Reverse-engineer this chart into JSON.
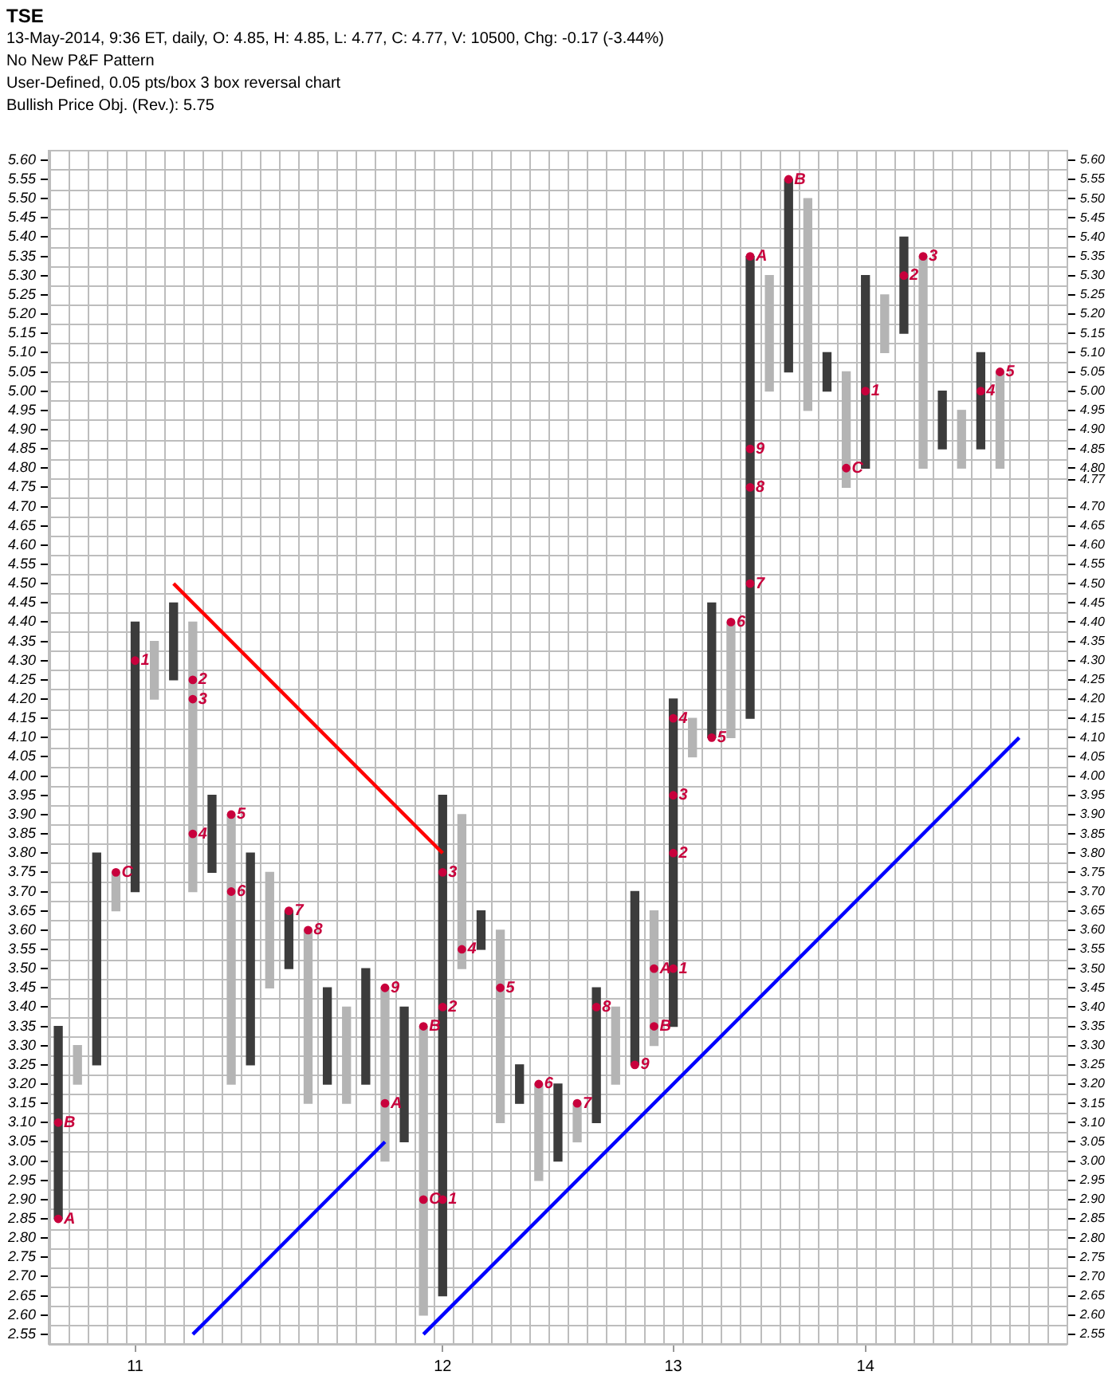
{
  "chart_data": {
    "type": "bar",
    "title": "TSE",
    "annotations": [
      "13-May-2014, 9:36 ET, daily, O: 4.85, H: 4.85, L: 4.77, C: 4.77, V: 10500, Chg: -0.17 (-3.44%)",
      "No New P&F Pattern",
      "User-Defined, 0.05 pts/box 3 box reversal chart",
      "Bullish Price Obj. (Rev.): 5.75"
    ],
    "categories": [
      null,
      null,
      null,
      null,
      "11",
      null,
      null,
      null,
      null,
      null,
      null,
      null,
      null,
      null,
      null,
      null,
      null,
      null,
      null,
      null,
      "12",
      null,
      null,
      null,
      null,
      null,
      null,
      null,
      null,
      null,
      null,
      null,
      "13",
      null,
      null,
      null,
      null,
      null,
      null,
      null,
      null,
      null,
      "14",
      null,
      null,
      null,
      null,
      null,
      null,
      null,
      null,
      null,
      null
    ],
    "series": [
      {
        "color": "#3c3c3c",
        "base": [
          2.85,
          null,
          3.25,
          null,
          3.7,
          null,
          4.25,
          null,
          3.75,
          null,
          3.25,
          null,
          3.5,
          null,
          3.2,
          null,
          3.2,
          null,
          3.05,
          null,
          2.65,
          null,
          3.55,
          null,
          3.15,
          null,
          3.0,
          null,
          3.1,
          null,
          3.25,
          null,
          3.35,
          null,
          4.1,
          null,
          4.15,
          null,
          5.05,
          null,
          5.0,
          null,
          4.8,
          null,
          5.15,
          null,
          4.85,
          null,
          4.85,
          null,
          null,
          null,
          null
        ],
        "values": [
          0.5,
          null,
          0.55,
          null,
          0.7,
          null,
          0.2,
          null,
          0.2,
          null,
          0.55,
          null,
          0.15,
          null,
          0.25,
          null,
          0.3,
          null,
          0.35,
          null,
          1.3,
          null,
          0.1,
          null,
          0.1,
          null,
          0.2,
          null,
          0.35,
          null,
          0.45,
          null,
          0.85,
          null,
          0.35,
          null,
          1.2,
          null,
          0.5,
          null,
          0.1,
          null,
          0.5,
          null,
          0.25,
          null,
          0.15,
          null,
          0.25,
          null,
          null,
          null,
          null
        ]
      },
      {
        "color": "#b4b4b4",
        "base": [
          null,
          3.2,
          null,
          3.65,
          null,
          4.2,
          null,
          3.7,
          null,
          3.2,
          null,
          3.45,
          null,
          3.15,
          null,
          3.15,
          null,
          3.0,
          null,
          2.6,
          null,
          3.5,
          null,
          3.1,
          null,
          2.95,
          null,
          3.05,
          null,
          3.2,
          null,
          3.3,
          null,
          4.05,
          null,
          4.1,
          null,
          5.0,
          null,
          4.95,
          null,
          4.75,
          null,
          5.1,
          null,
          4.8,
          null,
          4.8,
          null,
          4.8,
          null,
          null,
          null
        ],
        "values": [
          null,
          0.1,
          null,
          0.1,
          null,
          0.15,
          null,
          0.7,
          null,
          0.7,
          null,
          0.3,
          null,
          0.45,
          null,
          0.25,
          null,
          0.45,
          null,
          0.75,
          null,
          0.4,
          null,
          0.5,
          null,
          0.25,
          null,
          0.1,
          null,
          0.2,
          null,
          0.35,
          null,
          0.1,
          null,
          0.3,
          null,
          0.3,
          null,
          0.55,
          null,
          0.3,
          null,
          0.15,
          null,
          0.55,
          null,
          0.15,
          null,
          0.25,
          null,
          null,
          null
        ]
      },
      {
        "type": "scatter",
        "name": "1",
        "marker": "circle",
        "color": "#c8003c",
        "values": [
          null,
          null,
          null,
          null,
          4.3,
          null,
          null,
          null,
          null,
          null,
          null,
          null,
          null,
          null,
          null,
          null,
          null,
          null,
          null,
          null,
          2.9,
          null,
          null,
          null,
          null,
          null,
          null,
          null,
          null,
          null,
          null,
          null,
          3.5,
          null,
          null,
          null,
          null,
          null,
          null,
          null,
          null,
          null,
          5.0,
          null,
          null,
          null,
          null,
          null,
          null,
          null,
          null,
          null,
          null
        ]
      },
      {
        "type": "scatter",
        "name": "2",
        "marker": "circle",
        "color": "#c8003c",
        "values": [
          null,
          null,
          null,
          null,
          null,
          null,
          null,
          4.25,
          null,
          null,
          null,
          null,
          null,
          null,
          null,
          null,
          null,
          null,
          null,
          null,
          3.4,
          null,
          null,
          null,
          null,
          null,
          null,
          null,
          null,
          null,
          null,
          null,
          3.8,
          null,
          null,
          null,
          null,
          null,
          null,
          null,
          null,
          null,
          null,
          null,
          5.3,
          null,
          null,
          null,
          null,
          null,
          null,
          null,
          null
        ]
      },
      {
        "type": "scatter",
        "name": "3",
        "marker": "circle",
        "color": "#c8003c",
        "values": [
          null,
          null,
          null,
          null,
          null,
          null,
          null,
          4.2,
          null,
          null,
          null,
          null,
          null,
          null,
          null,
          null,
          null,
          null,
          null,
          null,
          3.75,
          null,
          null,
          null,
          null,
          null,
          null,
          null,
          null,
          null,
          null,
          null,
          3.95,
          null,
          null,
          null,
          null,
          null,
          null,
          null,
          null,
          null,
          null,
          null,
          null,
          5.35,
          null,
          null,
          null,
          null,
          null,
          null,
          null
        ]
      },
      {
        "type": "scatter",
        "name": "4",
        "marker": "circle",
        "color": "#c8003c",
        "values": [
          null,
          null,
          null,
          null,
          null,
          null,
          null,
          3.85,
          null,
          null,
          null,
          null,
          null,
          null,
          null,
          null,
          null,
          null,
          null,
          null,
          null,
          3.55,
          null,
          null,
          null,
          null,
          null,
          null,
          null,
          null,
          null,
          null,
          4.15,
          null,
          null,
          null,
          null,
          null,
          null,
          null,
          null,
          null,
          null,
          null,
          null,
          null,
          null,
          null,
          5.0,
          null,
          null,
          null,
          null
        ]
      },
      {
        "type": "scatter",
        "name": "5",
        "marker": "circle",
        "color": "#c8003c",
        "values": [
          null,
          null,
          null,
          null,
          null,
          null,
          null,
          null,
          null,
          3.9,
          null,
          null,
          null,
          null,
          null,
          null,
          null,
          null,
          null,
          null,
          null,
          null,
          null,
          3.45,
          null,
          null,
          null,
          null,
          null,
          null,
          null,
          null,
          null,
          null,
          4.1,
          null,
          null,
          null,
          null,
          null,
          null,
          null,
          null,
          null,
          null,
          null,
          null,
          null,
          null,
          5.05,
          null,
          null,
          null
        ]
      },
      {
        "type": "scatter",
        "name": "6",
        "marker": "circle",
        "color": "#c8003c",
        "values": [
          null,
          null,
          null,
          null,
          null,
          null,
          null,
          null,
          null,
          3.7,
          null,
          null,
          null,
          null,
          null,
          null,
          null,
          null,
          null,
          null,
          null,
          null,
          null,
          null,
          null,
          3.2,
          null,
          null,
          null,
          null,
          null,
          null,
          null,
          null,
          null,
          4.4,
          null,
          null,
          null,
          null,
          null,
          null,
          null,
          null,
          null,
          null,
          null,
          null,
          null,
          null,
          null,
          null,
          null
        ]
      },
      {
        "type": "scatter",
        "name": "7",
        "marker": "circle",
        "color": "#c8003c",
        "values": [
          null,
          null,
          null,
          null,
          null,
          null,
          null,
          null,
          null,
          null,
          null,
          null,
          3.65,
          null,
          null,
          null,
          null,
          null,
          null,
          null,
          null,
          null,
          null,
          null,
          null,
          null,
          null,
          3.15,
          null,
          null,
          null,
          null,
          null,
          null,
          null,
          null,
          4.5,
          null,
          null,
          null,
          null,
          null,
          null,
          null,
          null,
          null,
          null,
          null,
          null,
          null,
          null,
          null,
          null
        ]
      },
      {
        "type": "scatter",
        "name": "8",
        "marker": "circle",
        "color": "#c8003c",
        "values": [
          null,
          null,
          null,
          null,
          null,
          null,
          null,
          null,
          null,
          null,
          null,
          null,
          null,
          3.6,
          null,
          null,
          null,
          null,
          null,
          null,
          null,
          null,
          null,
          null,
          null,
          null,
          null,
          null,
          3.4,
          null,
          null,
          null,
          null,
          null,
          null,
          null,
          4.75,
          null,
          null,
          null,
          null,
          null,
          null,
          null,
          null,
          null,
          null,
          null,
          null,
          null,
          null,
          null,
          null
        ]
      },
      {
        "type": "scatter",
        "name": "9",
        "marker": "circle",
        "color": "#c8003c",
        "values": [
          null,
          null,
          null,
          null,
          null,
          null,
          null,
          null,
          null,
          null,
          null,
          null,
          null,
          null,
          null,
          null,
          null,
          3.45,
          null,
          null,
          null,
          null,
          null,
          null,
          null,
          null,
          null,
          null,
          null,
          null,
          3.25,
          null,
          null,
          null,
          null,
          null,
          4.85,
          null,
          null,
          null,
          null,
          null,
          null,
          null,
          null,
          null,
          null,
          null,
          null,
          null,
          null,
          null,
          null
        ]
      },
      {
        "type": "scatter",
        "name": "A",
        "marker": "circle",
        "color": "#c8003c",
        "values": [
          2.85,
          null,
          null,
          null,
          null,
          null,
          null,
          null,
          null,
          null,
          null,
          null,
          null,
          null,
          null,
          null,
          null,
          3.15,
          null,
          null,
          null,
          null,
          null,
          null,
          null,
          null,
          null,
          null,
          null,
          null,
          null,
          3.5,
          null,
          null,
          null,
          null,
          5.35,
          null,
          null,
          null,
          null,
          null,
          null,
          null,
          null,
          null,
          null,
          null,
          null,
          null,
          null,
          null,
          null
        ]
      },
      {
        "type": "scatter",
        "name": "B",
        "marker": "circle",
        "color": "#c8003c",
        "values": [
          3.1,
          null,
          null,
          null,
          null,
          null,
          null,
          null,
          null,
          null,
          null,
          null,
          null,
          null,
          null,
          null,
          null,
          null,
          null,
          3.35,
          null,
          null,
          null,
          null,
          null,
          null,
          null,
          null,
          null,
          null,
          null,
          3.35,
          null,
          null,
          null,
          null,
          null,
          null,
          5.55,
          null,
          null,
          null,
          null,
          null,
          null,
          null,
          null,
          null,
          null,
          null,
          null,
          null,
          null
        ]
      },
      {
        "type": "scatter",
        "name": "C",
        "marker": "circle",
        "color": "#c8003c",
        "values": [
          null,
          null,
          null,
          3.75,
          null,
          null,
          null,
          null,
          null,
          null,
          null,
          null,
          null,
          null,
          null,
          null,
          null,
          null,
          null,
          2.9,
          null,
          null,
          null,
          null,
          null,
          null,
          null,
          null,
          null,
          null,
          null,
          null,
          null,
          null,
          null,
          null,
          null,
          null,
          null,
          null,
          null,
          4.8,
          null,
          null,
          null,
          null,
          null,
          null,
          null,
          null,
          null,
          null,
          null
        ]
      },
      {
        "type": "line",
        "color": "#ff0000",
        "values": [
          null,
          null,
          null,
          null,
          null,
          null,
          4.5,
          null,
          null,
          null,
          null,
          null,
          null,
          null,
          null,
          null,
          null,
          null,
          null,
          null,
          3.8,
          null,
          null,
          null,
          null,
          null,
          null,
          null,
          null,
          null,
          null,
          null,
          null,
          null,
          null,
          null,
          null,
          null,
          null,
          null,
          null,
          null,
          null,
          null,
          null,
          null,
          null,
          null,
          null,
          null,
          null,
          null,
          null
        ]
      },
      {
        "type": "line",
        "color": "#0000ff",
        "values": [
          null,
          null,
          null,
          null,
          null,
          null,
          null,
          2.55,
          null,
          null,
          null,
          null,
          null,
          null,
          null,
          null,
          null,
          3.05,
          null,
          null,
          null,
          null,
          null,
          null,
          null,
          null,
          null,
          null,
          null,
          null,
          null,
          null,
          null,
          null,
          null,
          null,
          null,
          null,
          null,
          null,
          null,
          null,
          null,
          null,
          null,
          null,
          null,
          null,
          null,
          null,
          null,
          null,
          null
        ]
      },
      {
        "type": "line",
        "color": "#0000ff",
        "values": [
          null,
          null,
          null,
          null,
          null,
          null,
          null,
          null,
          null,
          null,
          null,
          null,
          null,
          null,
          null,
          null,
          null,
          null,
          null,
          2.55,
          null,
          null,
          null,
          null,
          null,
          null,
          null,
          null,
          null,
          null,
          null,
          null,
          null,
          null,
          null,
          null,
          null,
          null,
          null,
          null,
          null,
          null,
          null,
          null,
          null,
          null,
          null,
          null,
          null,
          null,
          4.1,
          null,
          null
        ]
      }
    ],
    "ylim": [
      2.525,
      5.625
    ],
    "yticks": [
      {
        "value": 2.55,
        "label": "2.55"
      },
      {
        "value": 2.6,
        "label": "2.60"
      },
      {
        "value": 2.65,
        "label": "2.65"
      },
      {
        "value": 2.7,
        "label": "2.70"
      },
      {
        "value": 2.75,
        "label": "2.75"
      },
      {
        "value": 2.8,
        "label": "2.80"
      },
      {
        "value": 2.85,
        "label": "2.85"
      },
      {
        "value": 2.9,
        "label": "2.90"
      },
      {
        "value": 2.95,
        "label": "2.95"
      },
      {
        "value": 3.0,
        "label": "3.00"
      },
      {
        "value": 3.05,
        "label": "3.05"
      },
      {
        "value": 3.1,
        "label": "3.10"
      },
      {
        "value": 3.15,
        "label": "3.15"
      },
      {
        "value": 3.2,
        "label": "3.20"
      },
      {
        "value": 3.25,
        "label": "3.25"
      },
      {
        "value": 3.3,
        "label": "3.30"
      },
      {
        "value": 3.35,
        "label": "3.35"
      },
      {
        "value": 3.4,
        "label": "3.40"
      },
      {
        "value": 3.45,
        "label": "3.45"
      },
      {
        "value": 3.5,
        "label": "3.50"
      },
      {
        "value": 3.55,
        "label": "3.55"
      },
      {
        "value": 3.6,
        "label": "3.60"
      },
      {
        "value": 3.65,
        "label": "3.65"
      },
      {
        "value": 3.7,
        "label": "3.70"
      },
      {
        "value": 3.75,
        "label": "3.75"
      },
      {
        "value": 3.8,
        "label": "3.80"
      },
      {
        "value": 3.85,
        "label": "3.85"
      },
      {
        "value": 3.9,
        "label": "3.90"
      },
      {
        "value": 3.95,
        "label": "3.95"
      },
      {
        "value": 4.0,
        "label": "4.00"
      },
      {
        "value": 4.05,
        "label": "4.05"
      },
      {
        "value": 4.1,
        "label": "4.10"
      },
      {
        "value": 4.15,
        "label": "4.15"
      },
      {
        "value": 4.2,
        "label": "4.20"
      },
      {
        "value": 4.25,
        "label": "4.25"
      },
      {
        "value": 4.3,
        "label": "4.30"
      },
      {
        "value": 4.35,
        "label": "4.35"
      },
      {
        "value": 4.4,
        "label": "4.40"
      },
      {
        "value": 4.45,
        "label": "4.45"
      },
      {
        "value": 4.5,
        "label": "4.50"
      },
      {
        "value": 4.55,
        "label": "4.55"
      },
      {
        "value": 4.6,
        "label": "4.60"
      },
      {
        "value": 4.65,
        "label": "4.65"
      },
      {
        "value": 4.7,
        "label": "4.70"
      },
      {
        "value": 4.75,
        "label": "4.75"
      },
      {
        "value": 4.8,
        "label": "4.80"
      },
      {
        "value": 4.85,
        "label": "4.85"
      },
      {
        "value": 4.9,
        "label": "4.90"
      },
      {
        "value": 4.95,
        "label": "4.95"
      },
      {
        "value": 5.0,
        "label": "5.00"
      },
      {
        "value": 5.05,
        "label": "5.05"
      },
      {
        "value": 5.1,
        "label": "5.10"
      },
      {
        "value": 5.15,
        "label": "5.15"
      },
      {
        "value": 5.2,
        "label": "5.20"
      },
      {
        "value": 5.25,
        "label": "5.25"
      },
      {
        "value": 5.3,
        "label": "5.30"
      },
      {
        "value": 5.35,
        "label": "5.35"
      },
      {
        "value": 5.4,
        "label": "5.40"
      },
      {
        "value": 5.45,
        "label": "5.45"
      },
      {
        "value": 5.5,
        "label": "5.50"
      },
      {
        "value": 5.55,
        "label": "5.55"
      },
      {
        "value": 5.6,
        "label": "5.60"
      }
    ],
    "y2lim": [
      2.525,
      5.625
    ],
    "y2ticks": [
      {
        "value": 2.55,
        "label": "2.55"
      },
      {
        "value": 2.6,
        "label": "2.60"
      },
      {
        "value": 2.65,
        "label": "2.65"
      },
      {
        "value": 2.7,
        "label": "2.70"
      },
      {
        "value": 2.75,
        "label": "2.75"
      },
      {
        "value": 2.8,
        "label": "2.80"
      },
      {
        "value": 2.85,
        "label": "2.85"
      },
      {
        "value": 2.9,
        "label": "2.90"
      },
      {
        "value": 2.95,
        "label": "2.95"
      },
      {
        "value": 3.0,
        "label": "3.00"
      },
      {
        "value": 3.05,
        "label": "3.05"
      },
      {
        "value": 3.1,
        "label": "3.10"
      },
      {
        "value": 3.15,
        "label": "3.15"
      },
      {
        "value": 3.2,
        "label": "3.20"
      },
      {
        "value": 3.25,
        "label": "3.25"
      },
      {
        "value": 3.3,
        "label": "3.30"
      },
      {
        "value": 3.35,
        "label": "3.35"
      },
      {
        "value": 3.4,
        "label": "3.40"
      },
      {
        "value": 3.45,
        "label": "3.45"
      },
      {
        "value": 3.5,
        "label": "3.50"
      },
      {
        "value": 3.55,
        "label": "3.55"
      },
      {
        "value": 3.6,
        "label": "3.60"
      },
      {
        "value": 3.65,
        "label": "3.65"
      },
      {
        "value": 3.7,
        "label": "3.70"
      },
      {
        "value": 3.75,
        "label": "3.75"
      },
      {
        "value": 3.8,
        "label": "3.80"
      },
      {
        "value": 3.85,
        "label": "3.85"
      },
      {
        "value": 3.9,
        "label": "3.90"
      },
      {
        "value": 3.95,
        "label": "3.95"
      },
      {
        "value": 4.0,
        "label": "4.00"
      },
      {
        "value": 4.05,
        "label": "4.05"
      },
      {
        "value": 4.1,
        "label": "4.10"
      },
      {
        "value": 4.15,
        "label": "4.15"
      },
      {
        "value": 4.2,
        "label": "4.20"
      },
      {
        "value": 4.25,
        "label": "4.25"
      },
      {
        "value": 4.3,
        "label": "4.30"
      },
      {
        "value": 4.35,
        "label": "4.35"
      },
      {
        "value": 4.4,
        "label": "4.40"
      },
      {
        "value": 4.45,
        "label": "4.45"
      },
      {
        "value": 4.5,
        "label": "4.50"
      },
      {
        "value": 4.55,
        "label": "4.55"
      },
      {
        "value": 4.6,
        "label": "4.60"
      },
      {
        "value": 4.65,
        "label": "4.65"
      },
      {
        "value": 4.7,
        "label": "4.70"
      },
      {
        "value": 4.77,
        "label": "4.77"
      },
      {
        "value": 4.8,
        "label": "4.80"
      },
      {
        "value": 4.85,
        "label": "4.85"
      },
      {
        "value": 4.9,
        "label": "4.90"
      },
      {
        "value": 4.95,
        "label": "4.95"
      },
      {
        "value": 5.0,
        "label": "5.00"
      },
      {
        "value": 5.05,
        "label": "5.05"
      },
      {
        "value": 5.1,
        "label": "5.10"
      },
      {
        "value": 5.15,
        "label": "5.15"
      },
      {
        "value": 5.2,
        "label": "5.20"
      },
      {
        "value": 5.25,
        "label": "5.25"
      },
      {
        "value": 5.3,
        "label": "5.30"
      },
      {
        "value": 5.35,
        "label": "5.35"
      },
      {
        "value": 5.4,
        "label": "5.40"
      },
      {
        "value": 5.45,
        "label": "5.45"
      },
      {
        "value": 5.5,
        "label": "5.50"
      },
      {
        "value": 5.55,
        "label": "5.55"
      },
      {
        "value": 5.6,
        "label": "5.60"
      }
    ],
    "grid": true
  }
}
